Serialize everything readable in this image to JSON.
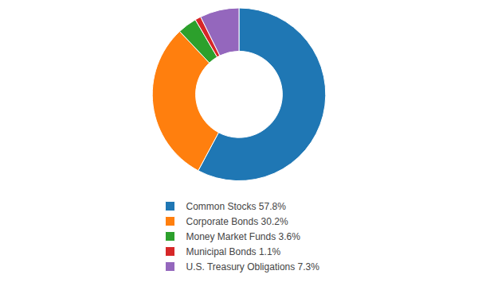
{
  "chart_data": {
    "type": "pie",
    "categories": [
      "Common Stocks 57.8%",
      "Corporate Bonds 30.2%",
      "Money Market Funds 3.6%",
      "Municipal Bonds 1.1%",
      "U.S. Treasury Obligations 7.3%"
    ],
    "values": [
      57.8,
      30.2,
      3.6,
      1.1,
      7.3
    ],
    "legend": "bottom"
  }
}
